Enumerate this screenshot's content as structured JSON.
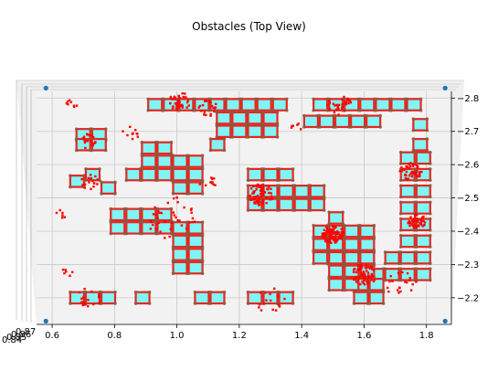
{
  "chart_data": {
    "type": "scatter",
    "title": "Obstacles (Top View)",
    "projection": "3d, viewed from top",
    "xlabel": "",
    "ylabel": "",
    "xlim": [
      0.55,
      1.88
    ],
    "ylim": [
      2.12,
      2.82
    ],
    "x_ticks": [
      0.6,
      0.8,
      1.0,
      1.2,
      1.4,
      1.6,
      1.8
    ],
    "x_tick_labels": [
      "0.6",
      "0.8",
      "1.0",
      "1.2",
      "1.4",
      "1.6",
      "1.8"
    ],
    "y_ticks": [
      2.2,
      2.3,
      2.4,
      2.5,
      2.6,
      2.7,
      2.8
    ],
    "y_tick_labels": [
      "2.2",
      "2.3",
      "2.4",
      "2.5",
      "2.6",
      "2.7",
      "2.8"
    ],
    "z_tick_labels": [
      "0.84",
      "0.85",
      "0.86",
      "0.87"
    ],
    "grid": true,
    "colors": {
      "box_fill": "#7ff5f5",
      "box_edge": "#e8251f",
      "points": "#ff0000",
      "corner_marker": "#1f77b4",
      "pane": "#f2f2f2",
      "grid": "#c8c8c8"
    },
    "obstacle_cells": [
      {
        "x": 0.7,
        "y": 2.69
      },
      {
        "x": 0.7,
        "y": 2.66
      },
      {
        "x": 0.75,
        "y": 2.69
      },
      {
        "x": 0.75,
        "y": 2.66
      },
      {
        "x": 0.68,
        "y": 2.55
      },
      {
        "x": 0.73,
        "y": 2.57
      },
      {
        "x": 0.78,
        "y": 2.53
      },
      {
        "x": 0.86,
        "y": 2.57
      },
      {
        "x": 0.91,
        "y": 2.57
      },
      {
        "x": 0.96,
        "y": 2.57
      },
      {
        "x": 1.01,
        "y": 2.57
      },
      {
        "x": 1.06,
        "y": 2.57
      },
      {
        "x": 0.91,
        "y": 2.65
      },
      {
        "x": 0.96,
        "y": 2.65
      },
      {
        "x": 0.91,
        "y": 2.61
      },
      {
        "x": 0.96,
        "y": 2.61
      },
      {
        "x": 1.01,
        "y": 2.61
      },
      {
        "x": 1.06,
        "y": 2.61
      },
      {
        "x": 1.01,
        "y": 2.53
      },
      {
        "x": 1.06,
        "y": 2.53
      },
      {
        "x": 0.81,
        "y": 2.45
      },
      {
        "x": 0.86,
        "y": 2.45
      },
      {
        "x": 0.91,
        "y": 2.45
      },
      {
        "x": 0.96,
        "y": 2.45
      },
      {
        "x": 0.81,
        "y": 2.41
      },
      {
        "x": 0.86,
        "y": 2.41
      },
      {
        "x": 0.91,
        "y": 2.41
      },
      {
        "x": 0.96,
        "y": 2.41
      },
      {
        "x": 1.01,
        "y": 2.41
      },
      {
        "x": 1.06,
        "y": 2.41
      },
      {
        "x": 1.01,
        "y": 2.37
      },
      {
        "x": 1.06,
        "y": 2.37
      },
      {
        "x": 1.01,
        "y": 2.33
      },
      {
        "x": 1.06,
        "y": 2.33
      },
      {
        "x": 1.01,
        "y": 2.29
      },
      {
        "x": 1.06,
        "y": 2.29
      },
      {
        "x": 0.93,
        "y": 2.78
      },
      {
        "x": 0.98,
        "y": 2.78
      },
      {
        "x": 1.03,
        "y": 2.78
      },
      {
        "x": 1.08,
        "y": 2.78
      },
      {
        "x": 1.13,
        "y": 2.78
      },
      {
        "x": 1.18,
        "y": 2.78
      },
      {
        "x": 1.23,
        "y": 2.78
      },
      {
        "x": 1.28,
        "y": 2.78
      },
      {
        "x": 1.33,
        "y": 2.78
      },
      {
        "x": 1.15,
        "y": 2.74
      },
      {
        "x": 1.2,
        "y": 2.74
      },
      {
        "x": 1.25,
        "y": 2.74
      },
      {
        "x": 1.3,
        "y": 2.74
      },
      {
        "x": 1.15,
        "y": 2.7
      },
      {
        "x": 1.2,
        "y": 2.7
      },
      {
        "x": 1.25,
        "y": 2.7
      },
      {
        "x": 1.3,
        "y": 2.7
      },
      {
        "x": 1.13,
        "y": 2.66
      },
      {
        "x": 1.46,
        "y": 2.78
      },
      {
        "x": 1.51,
        "y": 2.78
      },
      {
        "x": 1.56,
        "y": 2.78
      },
      {
        "x": 1.61,
        "y": 2.78
      },
      {
        "x": 1.66,
        "y": 2.78
      },
      {
        "x": 1.71,
        "y": 2.78
      },
      {
        "x": 1.76,
        "y": 2.78
      },
      {
        "x": 1.43,
        "y": 2.73
      },
      {
        "x": 1.48,
        "y": 2.73
      },
      {
        "x": 1.53,
        "y": 2.73
      },
      {
        "x": 1.58,
        "y": 2.73
      },
      {
        "x": 1.63,
        "y": 2.73
      },
      {
        "x": 1.78,
        "y": 2.72
      },
      {
        "x": 1.78,
        "y": 2.66
      },
      {
        "x": 1.74,
        "y": 2.62
      },
      {
        "x": 1.79,
        "y": 2.62
      },
      {
        "x": 1.74,
        "y": 2.57
      },
      {
        "x": 1.79,
        "y": 2.57
      },
      {
        "x": 1.74,
        "y": 2.52
      },
      {
        "x": 1.79,
        "y": 2.52
      },
      {
        "x": 1.74,
        "y": 2.47
      },
      {
        "x": 1.79,
        "y": 2.47
      },
      {
        "x": 1.74,
        "y": 2.42
      },
      {
        "x": 1.79,
        "y": 2.42
      },
      {
        "x": 1.74,
        "y": 2.37
      },
      {
        "x": 1.79,
        "y": 2.37
      },
      {
        "x": 1.74,
        "y": 2.32
      },
      {
        "x": 1.79,
        "y": 2.32
      },
      {
        "x": 1.74,
        "y": 2.27
      },
      {
        "x": 1.79,
        "y": 2.27
      },
      {
        "x": 1.69,
        "y": 2.32
      },
      {
        "x": 1.69,
        "y": 2.27
      },
      {
        "x": 1.64,
        "y": 2.27
      },
      {
        "x": 1.59,
        "y": 2.24
      },
      {
        "x": 1.64,
        "y": 2.24
      },
      {
        "x": 1.59,
        "y": 2.2
      },
      {
        "x": 1.64,
        "y": 2.2
      },
      {
        "x": 1.51,
        "y": 2.44
      },
      {
        "x": 1.51,
        "y": 2.4
      },
      {
        "x": 1.51,
        "y": 2.36
      },
      {
        "x": 1.51,
        "y": 2.32
      },
      {
        "x": 1.51,
        "y": 2.28
      },
      {
        "x": 1.51,
        "y": 2.24
      },
      {
        "x": 1.46,
        "y": 2.4
      },
      {
        "x": 1.46,
        "y": 2.36
      },
      {
        "x": 1.46,
        "y": 2.32
      },
      {
        "x": 1.56,
        "y": 2.4
      },
      {
        "x": 1.56,
        "y": 2.36
      },
      {
        "x": 1.56,
        "y": 2.32
      },
      {
        "x": 1.56,
        "y": 2.28
      },
      {
        "x": 1.56,
        "y": 2.24
      },
      {
        "x": 1.61,
        "y": 2.4
      },
      {
        "x": 1.61,
        "y": 2.36
      },
      {
        "x": 1.61,
        "y": 2.32
      },
      {
        "x": 1.61,
        "y": 2.28
      },
      {
        "x": 1.25,
        "y": 2.57
      },
      {
        "x": 1.3,
        "y": 2.57
      },
      {
        "x": 1.35,
        "y": 2.57
      },
      {
        "x": 1.25,
        "y": 2.52
      },
      {
        "x": 1.3,
        "y": 2.52
      },
      {
        "x": 1.35,
        "y": 2.52
      },
      {
        "x": 1.4,
        "y": 2.52
      },
      {
        "x": 1.45,
        "y": 2.52
      },
      {
        "x": 1.25,
        "y": 2.48
      },
      {
        "x": 1.3,
        "y": 2.48
      },
      {
        "x": 1.35,
        "y": 2.48
      },
      {
        "x": 1.4,
        "y": 2.48
      },
      {
        "x": 1.45,
        "y": 2.48
      },
      {
        "x": 0.68,
        "y": 2.2
      },
      {
        "x": 0.73,
        "y": 2.2
      },
      {
        "x": 0.78,
        "y": 2.2
      },
      {
        "x": 0.89,
        "y": 2.2
      },
      {
        "x": 1.08,
        "y": 2.2
      },
      {
        "x": 1.13,
        "y": 2.2
      },
      {
        "x": 1.25,
        "y": 2.2
      },
      {
        "x": 1.3,
        "y": 2.2
      },
      {
        "x": 1.35,
        "y": 2.2
      }
    ],
    "point_clusters": [
      {
        "x": 1.01,
        "y": 2.79,
        "spread": 0.035,
        "count": 40
      },
      {
        "x": 1.1,
        "y": 2.77,
        "spread": 0.03,
        "count": 20
      },
      {
        "x": 1.27,
        "y": 2.51,
        "spread": 0.04,
        "count": 70
      },
      {
        "x": 1.5,
        "y": 2.39,
        "spread": 0.035,
        "count": 80
      },
      {
        "x": 1.6,
        "y": 2.27,
        "spread": 0.04,
        "count": 70
      },
      {
        "x": 1.75,
        "y": 2.58,
        "spread": 0.035,
        "count": 50
      },
      {
        "x": 1.77,
        "y": 2.43,
        "spread": 0.03,
        "count": 40
      },
      {
        "x": 1.52,
        "y": 2.78,
        "spread": 0.04,
        "count": 30
      },
      {
        "x": 0.72,
        "y": 2.67,
        "spread": 0.03,
        "count": 20
      },
      {
        "x": 0.72,
        "y": 2.55,
        "spread": 0.03,
        "count": 18
      },
      {
        "x": 0.98,
        "y": 2.44,
        "spread": 0.08,
        "count": 40
      },
      {
        "x": 0.72,
        "y": 2.2,
        "spread": 0.04,
        "count": 18
      },
      {
        "x": 1.3,
        "y": 2.19,
        "spread": 0.05,
        "count": 18
      },
      {
        "x": 1.72,
        "y": 2.24,
        "spread": 0.05,
        "count": 20
      },
      {
        "x": 0.66,
        "y": 2.78,
        "spread": 0.02,
        "count": 8
      },
      {
        "x": 0.63,
        "y": 2.45,
        "spread": 0.02,
        "count": 6
      },
      {
        "x": 0.65,
        "y": 2.28,
        "spread": 0.02,
        "count": 6
      },
      {
        "x": 1.38,
        "y": 2.71,
        "spread": 0.02,
        "count": 6
      },
      {
        "x": 1.1,
        "y": 2.55,
        "spread": 0.03,
        "count": 10
      },
      {
        "x": 0.85,
        "y": 2.69,
        "spread": 0.03,
        "count": 10
      }
    ],
    "corner_points": [
      {
        "x": 0.58,
        "y": 2.83
      },
      {
        "x": 1.86,
        "y": 2.83
      },
      {
        "x": 0.58,
        "y": 2.13
      },
      {
        "x": 1.86,
        "y": 2.13
      }
    ]
  }
}
